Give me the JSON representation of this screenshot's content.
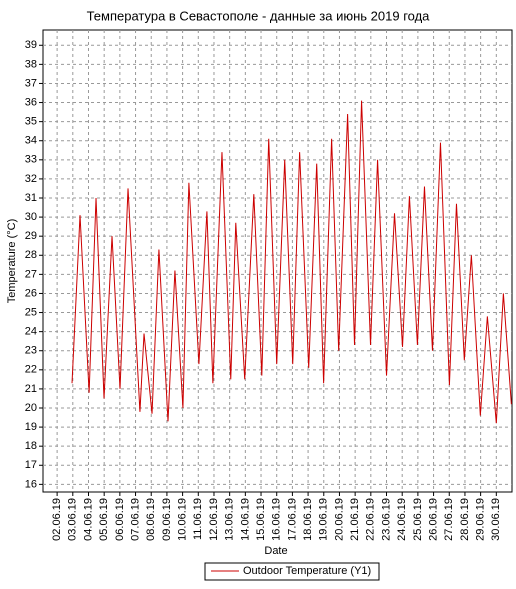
{
  "chart_data": {
    "type": "line",
    "title": "Температура в Севастополе - данные за июнь 2019 года",
    "x_label": "Date",
    "y_label": "Temperature (°C)",
    "x": [
      2.95,
      3.46,
      4.04,
      4.48,
      4.99,
      5.5,
      6.01,
      6.52,
      7.28,
      7.54,
      8.05,
      8.49,
      9.07,
      9.51,
      10.02,
      10.4,
      11.04,
      11.55,
      11.93,
      12.51,
      13.07,
      13.39,
      13.96,
      14.54,
      15.05,
      15.49,
      16.0,
      16.51,
      17.02,
      17.46,
      18.04,
      18.55,
      18.99,
      19.5,
      19.95,
      20.52,
      20.96,
      21.41,
      21.98,
      22.43,
      23.0,
      23.51,
      24.02,
      24.46,
      24.97,
      25.42,
      25.93,
      26.44,
      27.01,
      27.46,
      27.96,
      28.41,
      28.98,
      29.43,
      30.0,
      30.45,
      30.96
    ],
    "series": [
      {
        "name": "Outdoor Temperature (Y1)",
        "color": "#cc0000",
        "values": [
          21.3,
          30.1,
          20.8,
          31.0,
          20.5,
          29.0,
          21.0,
          31.5,
          19.8,
          23.9,
          19.7,
          28.3,
          19.3,
          27.2,
          20.0,
          31.8,
          22.3,
          30.3,
          21.3,
          33.4,
          21.5,
          29.7,
          21.5,
          31.2,
          21.7,
          34.1,
          22.3,
          33.0,
          22.3,
          33.4,
          22.1,
          32.8,
          21.3,
          34.1,
          23.0,
          35.4,
          23.3,
          36.1,
          23.3,
          33.0,
          21.7,
          30.2,
          23.2,
          31.1,
          23.3,
          31.6,
          23.0,
          33.9,
          21.2,
          30.7,
          22.5,
          28.0,
          19.6,
          24.8,
          19.2,
          26.0,
          20.2
        ]
      }
    ],
    "xlim": [
      1.1,
      31.0
    ],
    "xticks": [
      {
        "value": 2,
        "label": "02.06.19"
      },
      {
        "value": 3,
        "label": "03.06.19"
      },
      {
        "value": 4,
        "label": "04.06.19"
      },
      {
        "value": 5,
        "label": "05.06.19"
      },
      {
        "value": 6,
        "label": "06.06.19"
      },
      {
        "value": 7,
        "label": "07.06.19"
      },
      {
        "value": 8,
        "label": "08.06.19"
      },
      {
        "value": 9,
        "label": "09.06.19"
      },
      {
        "value": 10,
        "label": "10.06.19"
      },
      {
        "value": 11,
        "label": "11.06.19"
      },
      {
        "value": 12,
        "label": "12.06.19"
      },
      {
        "value": 13,
        "label": "13.06.19"
      },
      {
        "value": 14,
        "label": "14.06.19"
      },
      {
        "value": 15,
        "label": "15.06.19"
      },
      {
        "value": 16,
        "label": "16.06.19"
      },
      {
        "value": 17,
        "label": "17.06.19"
      },
      {
        "value": 18,
        "label": "18.06.19"
      },
      {
        "value": 19,
        "label": "19.06.19"
      },
      {
        "value": 20,
        "label": "20.06.19"
      },
      {
        "value": 21,
        "label": "21.06.19"
      },
      {
        "value": 22,
        "label": "22.06.19"
      },
      {
        "value": 23,
        "label": "23.06.19"
      },
      {
        "value": 24,
        "label": "24.06.19"
      },
      {
        "value": 25,
        "label": "25.06.19"
      },
      {
        "value": 26,
        "label": "26.06.19"
      },
      {
        "value": 27,
        "label": "27.06.19"
      },
      {
        "value": 28,
        "label": "28.06.19"
      },
      {
        "value": 29,
        "label": "29.06.19"
      },
      {
        "value": 30,
        "label": "30.06.19"
      }
    ],
    "ylim": [
      15.6,
      39.8
    ],
    "yticks": [
      16,
      17,
      18,
      19,
      20,
      21,
      22,
      23,
      24,
      25,
      26,
      27,
      28,
      29,
      30,
      31,
      32,
      33,
      34,
      35,
      36,
      37,
      38,
      39
    ],
    "grid": true,
    "legend": "bottom"
  }
}
